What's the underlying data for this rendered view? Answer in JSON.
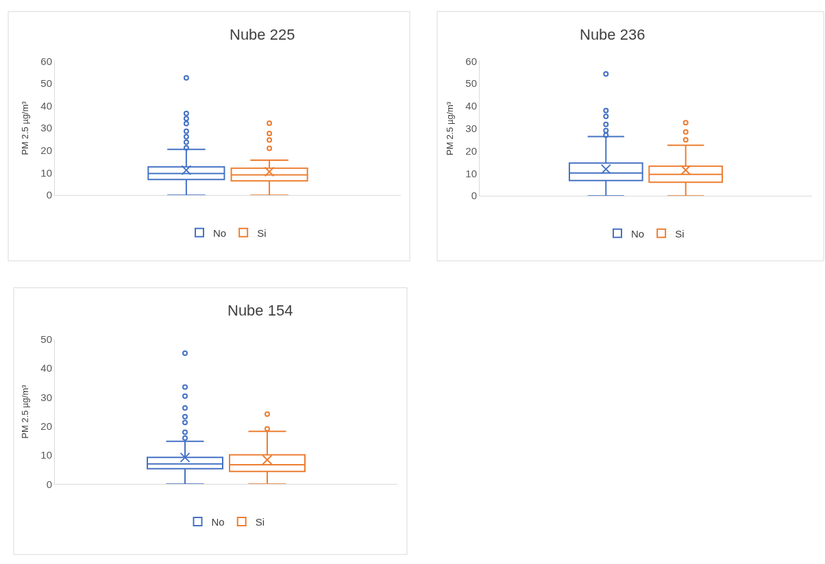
{
  "chart_data": [
    {
      "type": "box",
      "title": "Nube 225",
      "ylabel": "PM 2.5 µg/m³",
      "categories": [
        null
      ],
      "ylim": [
        0,
        60
      ],
      "yticks": [
        0,
        10,
        20,
        30,
        40,
        50,
        60
      ],
      "grid": false,
      "legend": "bottom",
      "series": [
        {
          "name": "No",
          "color": "#4472c4",
          "boxes": [
            {
              "low": 0,
              "q1": 7,
              "median": 9.7,
              "q3": 12.7,
              "high": 20.5,
              "mean": 11.2,
              "outliers": [
                21.2,
                23.7,
                26.2,
                28.6,
                32.1,
                34.3,
                36.6,
                52.5
              ]
            }
          ]
        },
        {
          "name": "Si",
          "color": "#ed7d31",
          "boxes": [
            {
              "low": 0,
              "q1": 6.4,
              "median": 9.1,
              "q3": 12.1,
              "high": 15.7,
              "mean": 10.5,
              "outliers": [
                21.0,
                24.7,
                27.6,
                32.2
              ]
            }
          ]
        }
      ]
    },
    {
      "type": "box",
      "title": "Nube 236",
      "ylabel": "PM 2.5 µg/m³",
      "categories": [
        null
      ],
      "ylim": [
        0,
        60
      ],
      "yticks": [
        0,
        10,
        20,
        30,
        40,
        50,
        60
      ],
      "grid": false,
      "legend": "bottom",
      "series": [
        {
          "name": "No",
          "color": "#4472c4",
          "boxes": [
            {
              "low": 0,
              "q1": 6.8,
              "median": 10.2,
              "q3": 14.6,
              "high": 26.4,
              "mean": 11.9,
              "outliers": [
                27.0,
                29.1,
                31.8,
                35.4,
                38.0,
                54.3
              ]
            }
          ]
        },
        {
          "name": "Si",
          "color": "#ed7d31",
          "boxes": [
            {
              "low": 0,
              "q1": 6.1,
              "median": 9.6,
              "q3": 13.2,
              "high": 22.5,
              "mean": 11.5,
              "outliers": [
                25.0,
                28.5,
                32.6
              ]
            }
          ]
        }
      ]
    },
    {
      "type": "box",
      "title": "Nube 154",
      "ylabel": "PM 2.5 µg/m³",
      "categories": [
        null
      ],
      "ylim": [
        0,
        50
      ],
      "yticks": [
        0,
        10,
        20,
        30,
        40,
        50
      ],
      "grid": false,
      "legend": "bottom",
      "series": [
        {
          "name": "No",
          "color": "#4472c4",
          "boxes": [
            {
              "low": 0,
              "q1": 5.3,
              "median": 7.0,
              "q3": 9.2,
              "high": 14.8,
              "mean": 9.2,
              "outliers": [
                15.9,
                17.9,
                21.3,
                23.3,
                26.3,
                30.4,
                33.5,
                45.2
              ]
            }
          ]
        },
        {
          "name": "Si",
          "color": "#ed7d31",
          "boxes": [
            {
              "low": 0,
              "q1": 4.4,
              "median": 6.7,
              "q3": 10.1,
              "high": 18.2,
              "mean": 8.4,
              "outliers": [
                19.1,
                24.2
              ]
            }
          ]
        }
      ]
    }
  ]
}
